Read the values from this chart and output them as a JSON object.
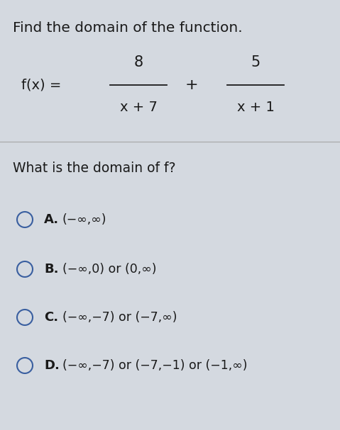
{
  "title": "Find the domain of the function.",
  "numerator1": "8",
  "denominator1": "x + 7",
  "numerator2": "5",
  "denominator2": "x + 1",
  "question": "What is the domain of f?",
  "options": [
    {
      "letter": "A.",
      "text": "(−∞,∞)"
    },
    {
      "letter": "B.",
      "text": "(−∞,0) or (0,∞)"
    },
    {
      "letter": "C.",
      "text": "(−∞,−7) or (−7,∞)"
    },
    {
      "letter": "D.",
      "text": "(−∞,−7) or (−7,−1) or (−1,∞)"
    }
  ],
  "bg_color": "#d4d9e0",
  "text_color": "#1a1a1a",
  "circle_color": "#3a5fa0",
  "divider_color": "#aaaaaa",
  "title_fontsize": 14.5,
  "question_fontsize": 13,
  "option_letter_fontsize": 13,
  "option_text_fontsize": 12.5,
  "function_fontsize": 14
}
